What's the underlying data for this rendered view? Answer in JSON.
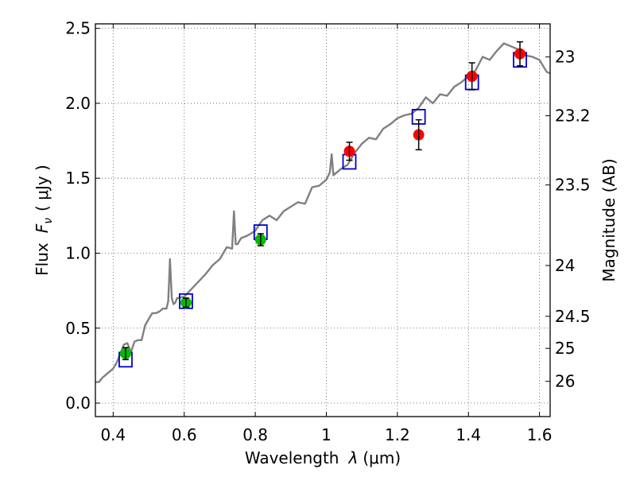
{
  "chart_data": {
    "type": "scatter",
    "xlabel_main": "Wavelength",
    "xlabel_symbol": "λ",
    "xlabel_unit": "(μm)",
    "ylabel_main": "Flux",
    "ylabel_symbol": "F",
    "ylabel_subscript": "ν",
    "ylabel_unit": "( μJy )",
    "y2label": "Magnitude (AB)",
    "xlim": [
      0.35,
      1.63
    ],
    "ylim": [
      -0.09,
      2.53
    ],
    "grid": true,
    "x_ticks": [
      {
        "value": 0.4,
        "label": "0.4"
      },
      {
        "value": 0.6,
        "label": "0.6"
      },
      {
        "value": 0.8,
        "label": "0.8"
      },
      {
        "value": 1.0,
        "label": "1"
      },
      {
        "value": 1.2,
        "label": "1.2"
      },
      {
        "value": 1.4,
        "label": "1.4"
      },
      {
        "value": 1.6,
        "label": "1.6"
      }
    ],
    "y_ticks": [
      {
        "value": 0.0,
        "label": "0.0"
      },
      {
        "value": 0.5,
        "label": "0.5"
      },
      {
        "value": 1.0,
        "label": "1.0"
      },
      {
        "value": 1.5,
        "label": "1.5"
      },
      {
        "value": 2.0,
        "label": "2.0"
      },
      {
        "value": 2.5,
        "label": "2.5"
      }
    ],
    "y2_ticks": [
      {
        "flux": 2.309,
        "label": "23"
      },
      {
        "flux": 1.917,
        "label": "23.2"
      },
      {
        "flux": 1.455,
        "label": "23.5"
      },
      {
        "flux": 0.918,
        "label": "24"
      },
      {
        "flux": 0.579,
        "label": "24.5"
      },
      {
        "flux": 0.365,
        "label": "25"
      },
      {
        "flux": 0.145,
        "label": "26"
      }
    ],
    "colors": {
      "spectrum": "#808080",
      "model_box": "#0000cc",
      "optical_points": "#00bb00",
      "nir_points": "#ff0000",
      "errorbar": "#000000",
      "grid": "#555555"
    },
    "spectrum": {
      "name": "",
      "x": [
        0.35,
        0.36,
        0.37,
        0.38,
        0.39,
        0.4,
        0.41,
        0.42,
        0.43,
        0.44,
        0.45,
        0.46,
        0.47,
        0.48,
        0.49,
        0.5,
        0.51,
        0.52,
        0.53,
        0.54,
        0.55,
        0.555,
        0.56,
        0.565,
        0.57,
        0.575,
        0.58,
        0.6,
        0.62,
        0.64,
        0.66,
        0.68,
        0.7,
        0.72,
        0.735,
        0.74,
        0.745,
        0.75,
        0.76,
        0.78,
        0.8,
        0.82,
        0.84,
        0.86,
        0.88,
        0.9,
        0.92,
        0.94,
        0.96,
        0.98,
        1.0,
        1.01,
        1.015,
        1.02,
        1.04,
        1.06,
        1.08,
        1.1,
        1.12,
        1.14,
        1.16,
        1.18,
        1.2,
        1.22,
        1.24,
        1.26,
        1.28,
        1.3,
        1.32,
        1.34,
        1.36,
        1.38,
        1.4,
        1.42,
        1.44,
        1.46,
        1.48,
        1.5,
        1.52,
        1.54,
        1.56,
        1.58,
        1.6,
        1.62,
        1.63
      ],
      "y": [
        0.14,
        0.14,
        0.17,
        0.19,
        0.21,
        0.23,
        0.27,
        0.33,
        0.39,
        0.4,
        0.34,
        0.41,
        0.42,
        0.42,
        0.52,
        0.56,
        0.6,
        0.6,
        0.61,
        0.63,
        0.63,
        0.68,
        0.96,
        0.7,
        0.66,
        0.67,
        0.7,
        0.71,
        0.76,
        0.81,
        0.86,
        0.92,
        0.96,
        1.04,
        1.03,
        1.28,
        1.06,
        1.06,
        1.1,
        1.12,
        1.15,
        1.22,
        1.25,
        1.22,
        1.28,
        1.31,
        1.34,
        1.33,
        1.44,
        1.45,
        1.49,
        1.54,
        1.66,
        1.52,
        1.56,
        1.59,
        1.67,
        1.73,
        1.77,
        1.76,
        1.83,
        1.86,
        1.9,
        1.92,
        1.93,
        1.97,
        2.04,
        2.0,
        2.06,
        2.05,
        2.11,
        2.14,
        2.18,
        2.22,
        2.31,
        2.29,
        2.35,
        2.4,
        2.38,
        2.36,
        2.32,
        2.31,
        2.29,
        2.21,
        2.2
      ]
    },
    "model_boxes": {
      "x": [
        0.435,
        0.605,
        0.815,
        1.065,
        1.26,
        1.41,
        1.545
      ],
      "y": [
        0.29,
        0.68,
        1.14,
        1.61,
        1.91,
        2.14,
        2.29
      ]
    },
    "optical_points": {
      "x": [
        0.435,
        0.605,
        0.815
      ],
      "y": [
        0.33,
        0.67,
        1.09
      ],
      "err": [
        0.04,
        0.03,
        0.04
      ]
    },
    "nir_points": {
      "x": [
        1.065,
        1.26,
        1.41,
        1.545
      ],
      "y": [
        1.68,
        1.79,
        2.18,
        2.33
      ],
      "err": [
        0.06,
        0.1,
        0.09,
        0.08
      ]
    }
  }
}
